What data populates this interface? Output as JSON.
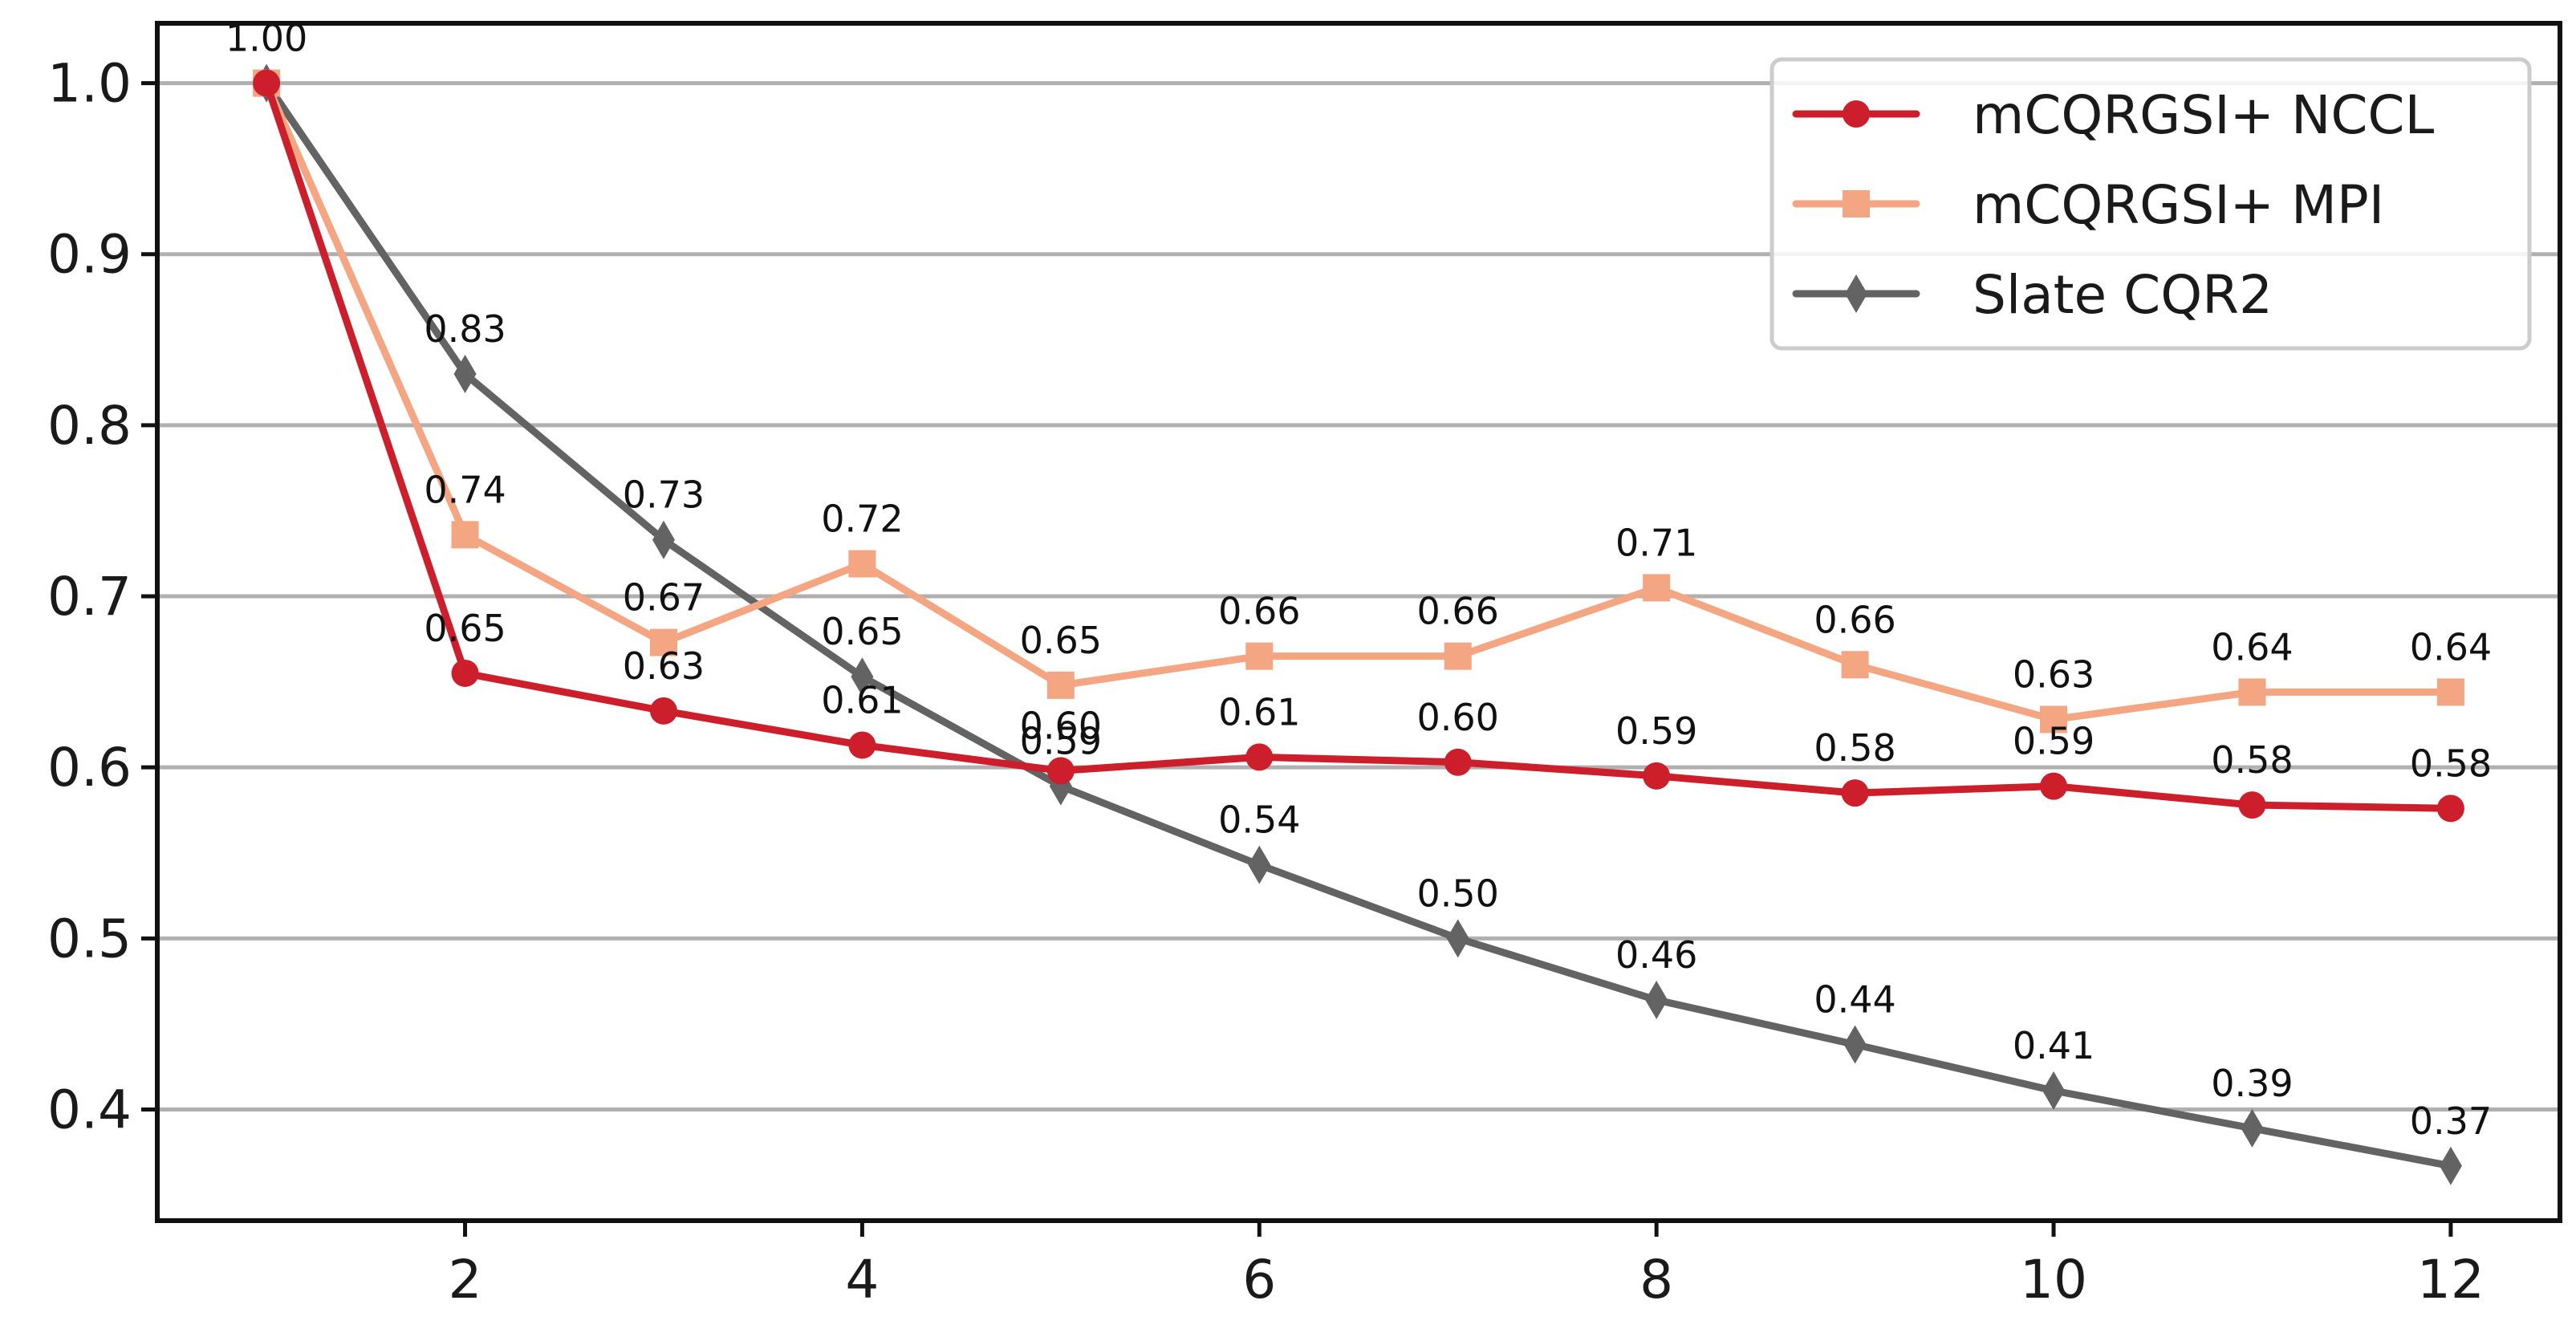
{
  "chart_data": {
    "type": "line",
    "title": "",
    "xlabel": "",
    "ylabel": "",
    "x": [
      1,
      2,
      3,
      4,
      5,
      6,
      7,
      8,
      9,
      10,
      11,
      12
    ],
    "xlim": [
      0.45,
      12.55
    ],
    "ylim": [
      0.335,
      1.035
    ],
    "xticks": [
      2,
      4,
      6,
      8,
      10,
      12
    ],
    "xtick_labels": [
      "2",
      "4",
      "6",
      "8",
      "10",
      "12"
    ],
    "yticks": [
      0.4,
      0.5,
      0.6,
      0.7,
      0.8,
      0.9,
      1.0
    ],
    "ytick_labels": [
      "0.4",
      "0.5",
      "0.6",
      "0.7",
      "0.8",
      "0.9",
      "1.0"
    ],
    "grid": "horizontal",
    "legend_position": "top-right",
    "series": [
      {
        "name": "mCQRGSI+ NCCL",
        "color": "#cc1f2b",
        "marker": "circle",
        "values": [
          1.0,
          0.655,
          0.633,
          0.613,
          0.598,
          0.606,
          0.603,
          0.595,
          0.585,
          0.589,
          0.578,
          0.576
        ],
        "labels": [
          "1.00",
          "0.65",
          "0.63",
          "0.61",
          "0.60",
          "0.61",
          "0.60",
          "0.59",
          "0.58",
          "0.59",
          "0.58",
          "0.58"
        ],
        "label_visible": [
          false,
          true,
          true,
          true,
          true,
          true,
          true,
          true,
          true,
          true,
          true,
          true
        ]
      },
      {
        "name": "mCQRGSI+ MPI",
        "color": "#f4a582",
        "marker": "square",
        "values": [
          1.0,
          0.736,
          0.673,
          0.719,
          0.648,
          0.665,
          0.665,
          0.705,
          0.66,
          0.628,
          0.644,
          0.644
        ],
        "labels": [
          "1.00",
          "0.74",
          "0.67",
          "0.72",
          "0.65",
          "0.66",
          "0.66",
          "0.71",
          "0.66",
          "0.63",
          "0.64",
          "0.64"
        ],
        "label_visible": [
          false,
          true,
          true,
          true,
          true,
          true,
          true,
          true,
          true,
          true,
          true,
          true
        ]
      },
      {
        "name": "Slate CQR2",
        "color": "#636363",
        "marker": "diamond",
        "values": [
          1.0,
          0.83,
          0.733,
          0.653,
          0.589,
          0.543,
          0.5,
          0.464,
          0.438,
          0.411,
          0.389,
          0.367
        ],
        "labels": [
          "1.00",
          "0.83",
          "0.73",
          "0.65",
          "0.59",
          "0.54",
          "0.50",
          "0.46",
          "0.44",
          "0.41",
          "0.39",
          "0.37"
        ],
        "label_visible": [
          true,
          true,
          true,
          true,
          true,
          true,
          true,
          true,
          true,
          true,
          true,
          true
        ]
      }
    ]
  }
}
